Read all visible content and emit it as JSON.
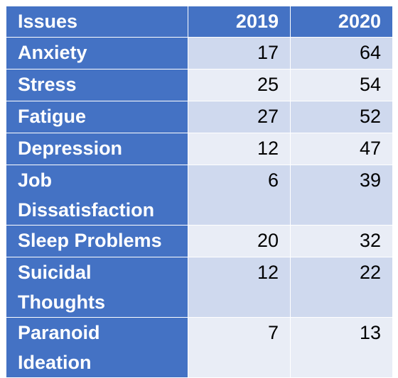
{
  "chart_data": {
    "type": "table",
    "columns": [
      "Issues",
      "2019",
      "2020"
    ],
    "rows": [
      {
        "issue": "Anxiety",
        "y2019": 17,
        "y2020": 64
      },
      {
        "issue": "Stress",
        "y2019": 25,
        "y2020": 54
      },
      {
        "issue": "Fatigue",
        "y2019": 27,
        "y2020": 52
      },
      {
        "issue": "Depression",
        "y2019": 12,
        "y2020": 47
      },
      {
        "issue": "Job Dissatisfaction",
        "y2019": 6,
        "y2020": 39
      },
      {
        "issue": "Sleep Problems",
        "y2019": 20,
        "y2020": 32
      },
      {
        "issue": "Suicidal Thoughts",
        "y2019": 12,
        "y2020": 22
      },
      {
        "issue": "Paranoid Ideation",
        "y2019": 7,
        "y2020": 13
      }
    ]
  },
  "colors": {
    "header_bg": "#4472c4",
    "header_text": "#ffffff",
    "row_band_dark": "#cfd9ee",
    "row_band_light": "#e9edf6",
    "value_text": "#000000"
  }
}
